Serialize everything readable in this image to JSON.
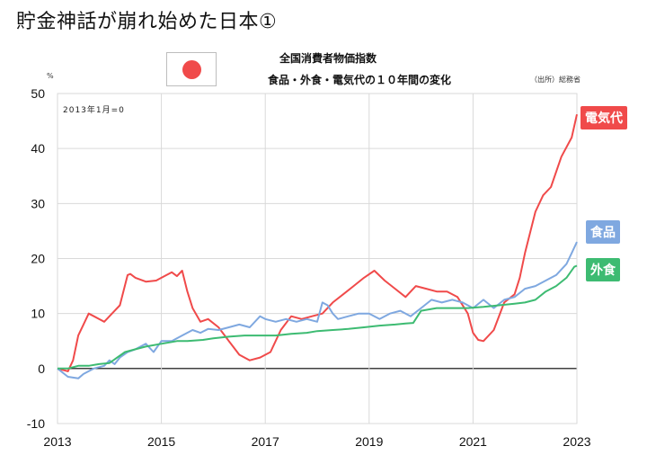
{
  "headline": "貯金神話が崩れ始めた日本①",
  "chart_title": "全国消費者物価指数",
  "chart_subtitle": "食品・外食・電気代の１０年間の変化",
  "source": "（出所）総務省",
  "unit_label": "%",
  "base_note": "2013年1月=0",
  "colors": {
    "electricity": "#f04a4a",
    "food": "#7fa8e0",
    "dining": "#3dbb72",
    "grid": "#d9d9d9",
    "zero": "#000000"
  },
  "chart_data": {
    "type": "line",
    "title": "全国消費者物価指数",
    "subtitle": "食品・外食・電気代の１０年間の変化",
    "ylim": [
      -10,
      50
    ],
    "yticks": [
      -10,
      0,
      10,
      20,
      30,
      40,
      50
    ],
    "xlim": [
      2013.0,
      2023.0
    ],
    "xticks": [
      "2013",
      "2015",
      "2017",
      "2019",
      "2021",
      "2023"
    ],
    "grid": true,
    "legend": "inline labels at right",
    "series": [
      {
        "name": "電気代",
        "key": "electricity",
        "x": [
          2013.0,
          2013.2,
          2013.3,
          2013.4,
          2013.5,
          2013.6,
          2013.7,
          2013.8,
          2013.9,
          2014.0,
          2014.2,
          2014.35,
          2014.4,
          2014.5,
          2014.7,
          2014.9,
          2015.0,
          2015.2,
          2015.3,
          2015.4,
          2015.5,
          2015.6,
          2015.75,
          2015.9,
          2016.1,
          2016.3,
          2016.5,
          2016.7,
          2016.9,
          2017.1,
          2017.3,
          2017.5,
          2017.7,
          2017.9,
          2018.1,
          2018.3,
          2018.5,
          2018.7,
          2018.9,
          2019.1,
          2019.3,
          2019.5,
          2019.7,
          2019.9,
          2020.1,
          2020.3,
          2020.5,
          2020.7,
          2020.9,
          2021.0,
          2021.1,
          2021.2,
          2021.4,
          2021.6,
          2021.8,
          2021.9,
          2022.0,
          2022.2,
          2022.35,
          2022.5,
          2022.7,
          2022.9,
          2023.0
        ],
        "values": [
          0.0,
          -0.5,
          1.5,
          6.0,
          8.0,
          10.0,
          9.5,
          9.0,
          8.5,
          9.5,
          11.5,
          17.0,
          17.2,
          16.5,
          15.8,
          16.0,
          16.5,
          17.5,
          16.8,
          17.8,
          14.0,
          11.0,
          8.5,
          9.0,
          7.5,
          5.0,
          2.5,
          1.5,
          2.0,
          3.0,
          7.0,
          9.5,
          9.0,
          9.5,
          10.0,
          12.0,
          13.5,
          15.0,
          16.5,
          17.8,
          16.0,
          14.5,
          13.0,
          15.0,
          14.5,
          14.0,
          14.0,
          13.0,
          10.0,
          6.5,
          5.2,
          5.0,
          7.0,
          12.0,
          13.5,
          16.5,
          21.0,
          28.5,
          31.5,
          33.0,
          38.5,
          42.0,
          46.2
        ]
      },
      {
        "name": "食品",
        "key": "food",
        "x": [
          2013.0,
          2013.2,
          2013.4,
          2013.5,
          2013.7,
          2013.9,
          2014.0,
          2014.1,
          2014.2,
          2014.35,
          2014.5,
          2014.7,
          2014.85,
          2015.0,
          2015.2,
          2015.4,
          2015.6,
          2015.75,
          2015.9,
          2016.1,
          2016.3,
          2016.5,
          2016.7,
          2016.9,
          2017.0,
          2017.2,
          2017.4,
          2017.6,
          2017.8,
          2018.0,
          2018.1,
          2018.2,
          2018.3,
          2018.4,
          2018.6,
          2018.8,
          2019.0,
          2019.2,
          2019.4,
          2019.6,
          2019.8,
          2020.0,
          2020.2,
          2020.4,
          2020.6,
          2020.8,
          2021.0,
          2021.2,
          2021.4,
          2021.6,
          2021.8,
          2022.0,
          2022.2,
          2022.4,
          2022.6,
          2022.8,
          2022.9,
          2023.0
        ],
        "values": [
          0.0,
          -1.5,
          -1.8,
          -1.0,
          0.0,
          0.5,
          1.5,
          0.8,
          2.0,
          3.0,
          3.5,
          4.5,
          3.0,
          5.0,
          5.0,
          6.0,
          7.0,
          6.5,
          7.2,
          7.0,
          7.5,
          8.0,
          7.5,
          9.5,
          9.0,
          8.5,
          9.0,
          8.5,
          9.0,
          8.5,
          12.0,
          11.5,
          10.0,
          9.0,
          9.5,
          10.0,
          10.0,
          9.0,
          10.0,
          10.5,
          9.5,
          11.0,
          12.5,
          12.0,
          12.5,
          12.0,
          11.0,
          12.5,
          11.0,
          12.5,
          13.0,
          14.5,
          15.0,
          16.0,
          17.0,
          19.0,
          21.0,
          23.0
        ]
      },
      {
        "name": "外食",
        "key": "dining",
        "x": [
          2013.0,
          2013.2,
          2013.4,
          2013.6,
          2013.8,
          2014.0,
          2014.3,
          2014.5,
          2014.7,
          2015.0,
          2015.3,
          2015.5,
          2015.8,
          2016.0,
          2016.3,
          2016.6,
          2016.9,
          2017.2,
          2017.5,
          2017.8,
          2018.0,
          2018.3,
          2018.6,
          2018.9,
          2019.2,
          2019.5,
          2019.7,
          2019.85,
          2020.0,
          2020.3,
          2020.6,
          2020.9,
          2021.2,
          2021.5,
          2021.8,
          2022.0,
          2022.2,
          2022.4,
          2022.6,
          2022.8,
          2022.95,
          2023.0
        ],
        "values": [
          0.0,
          0.0,
          0.5,
          0.5,
          0.8,
          1.0,
          3.0,
          3.5,
          4.0,
          4.5,
          5.0,
          5.0,
          5.2,
          5.5,
          5.8,
          6.0,
          6.0,
          6.0,
          6.3,
          6.5,
          6.8,
          7.0,
          7.2,
          7.5,
          7.8,
          8.0,
          8.2,
          8.3,
          10.5,
          11.0,
          11.0,
          11.0,
          11.2,
          11.5,
          11.8,
          12.0,
          12.5,
          14.0,
          15.0,
          16.5,
          18.5,
          18.7
        ]
      }
    ],
    "labels": {
      "electricity": "電気代",
      "food": "食品",
      "dining": "外食"
    }
  }
}
